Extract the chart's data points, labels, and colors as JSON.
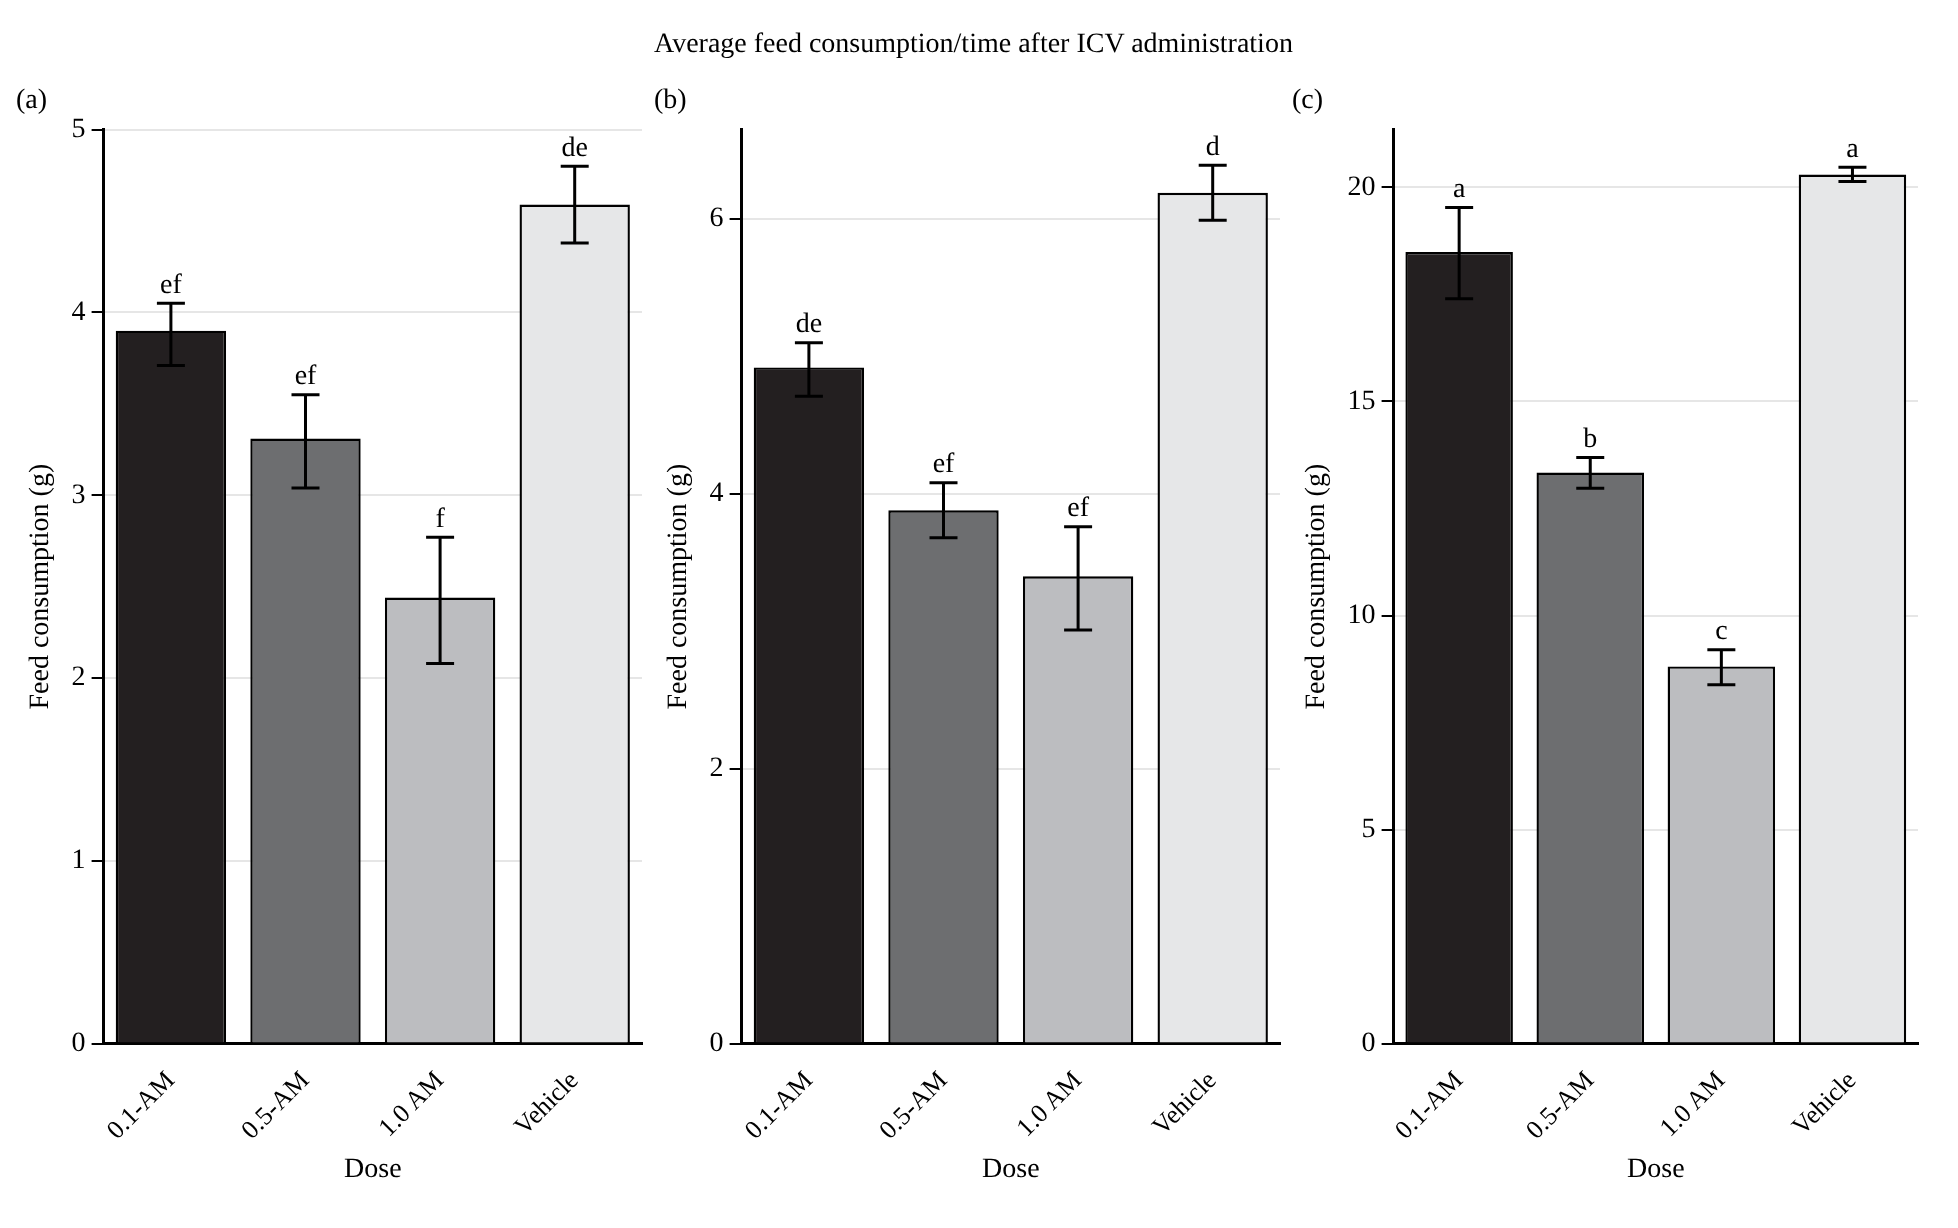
{
  "chart_data": [
    {
      "type": "bar",
      "subtitle": "(a)",
      "xlabel": "Dose",
      "ylabel": "Feed consumption (g)",
      "categories": [
        "0.1-AM",
        "0.5-AM",
        "1.0 AM",
        "Vehicle"
      ],
      "values": [
        3.9,
        3.31,
        2.44,
        4.59
      ],
      "colors": [
        "#231f20",
        "#6d6e70",
        "#bcbdc0",
        "#e6e7e8"
      ],
      "errors": [
        [
          3.71,
          4.05
        ],
        [
          3.04,
          3.55
        ],
        [
          2.08,
          2.77
        ],
        [
          4.38,
          4.8
        ]
      ],
      "ylim": [
        0,
        5
      ],
      "yticks": [
        0,
        1,
        2,
        3,
        4,
        5
      ],
      "grid": "y",
      "annotations": [
        {
          "text": "ef",
          "x": "0.1-AM",
          "y": 4.05
        },
        {
          "text": "ef",
          "x": "0.5-AM",
          "y": 3.55
        },
        {
          "text": "f",
          "x": "1.0 AM",
          "y": 2.77
        },
        {
          "text": "de",
          "x": "Vehicle",
          "y": 4.8
        }
      ]
    },
    {
      "type": "bar",
      "title": "Average feed consumption/time after ICV administration",
      "subtitle": "(b)",
      "xlabel": "Dose",
      "ylabel": "Feed consumption (g)",
      "categories": [
        "0.1-AM",
        "0.5-AM",
        "1.0 AM",
        "Vehicle"
      ],
      "values": [
        4.92,
        3.88,
        3.4,
        6.19
      ],
      "colors": [
        "#231f20",
        "#6d6e70",
        "#bcbdc0",
        "#e6e7e8"
      ],
      "errors": [
        [
          4.71,
          5.1
        ],
        [
          3.68,
          4.08
        ],
        [
          3.01,
          3.76
        ],
        [
          5.99,
          6.39
        ]
      ],
      "ylim": [
        0,
        6.65
      ],
      "yticks": [
        0,
        2,
        4,
        6
      ],
      "grid": "y",
      "annotations": [
        {
          "text": "de",
          "x": "0.1-AM",
          "y": 5.1
        },
        {
          "text": "ef",
          "x": "0.5-AM",
          "y": 4.08
        },
        {
          "text": "ef",
          "x": "1.0 AM",
          "y": 3.76
        },
        {
          "text": "d",
          "x": "Vehicle",
          "y": 6.39
        }
      ]
    },
    {
      "type": "bar",
      "subtitle": "(c)",
      "xlabel": "Dose",
      "ylabel": "Feed consumption (g)",
      "categories": [
        "0.1-AM",
        "0.5-AM",
        "1.0 AM",
        "Vehicle"
      ],
      "values": [
        18.49,
        13.34,
        8.81,
        20.3
      ],
      "colors": [
        "#231f20",
        "#6d6e70",
        "#bcbdc0",
        "#e6e7e8"
      ],
      "errors": [
        [
          17.4,
          19.53
        ],
        [
          12.97,
          13.69
        ],
        [
          8.38,
          9.2
        ],
        [
          20.14,
          20.47
        ]
      ],
      "ylim": [
        0,
        21.35
      ],
      "yticks": [
        0,
        5,
        10,
        15,
        20
      ],
      "grid": "y",
      "annotations": [
        {
          "text": "a",
          "x": "0.1-AM",
          "y": 19.53
        },
        {
          "text": "b",
          "x": "0.5-AM",
          "y": 13.69
        },
        {
          "text": "c",
          "x": "1.0 AM",
          "y": 9.2
        },
        {
          "text": "a",
          "x": "Vehicle",
          "y": 20.47
        }
      ]
    }
  ]
}
